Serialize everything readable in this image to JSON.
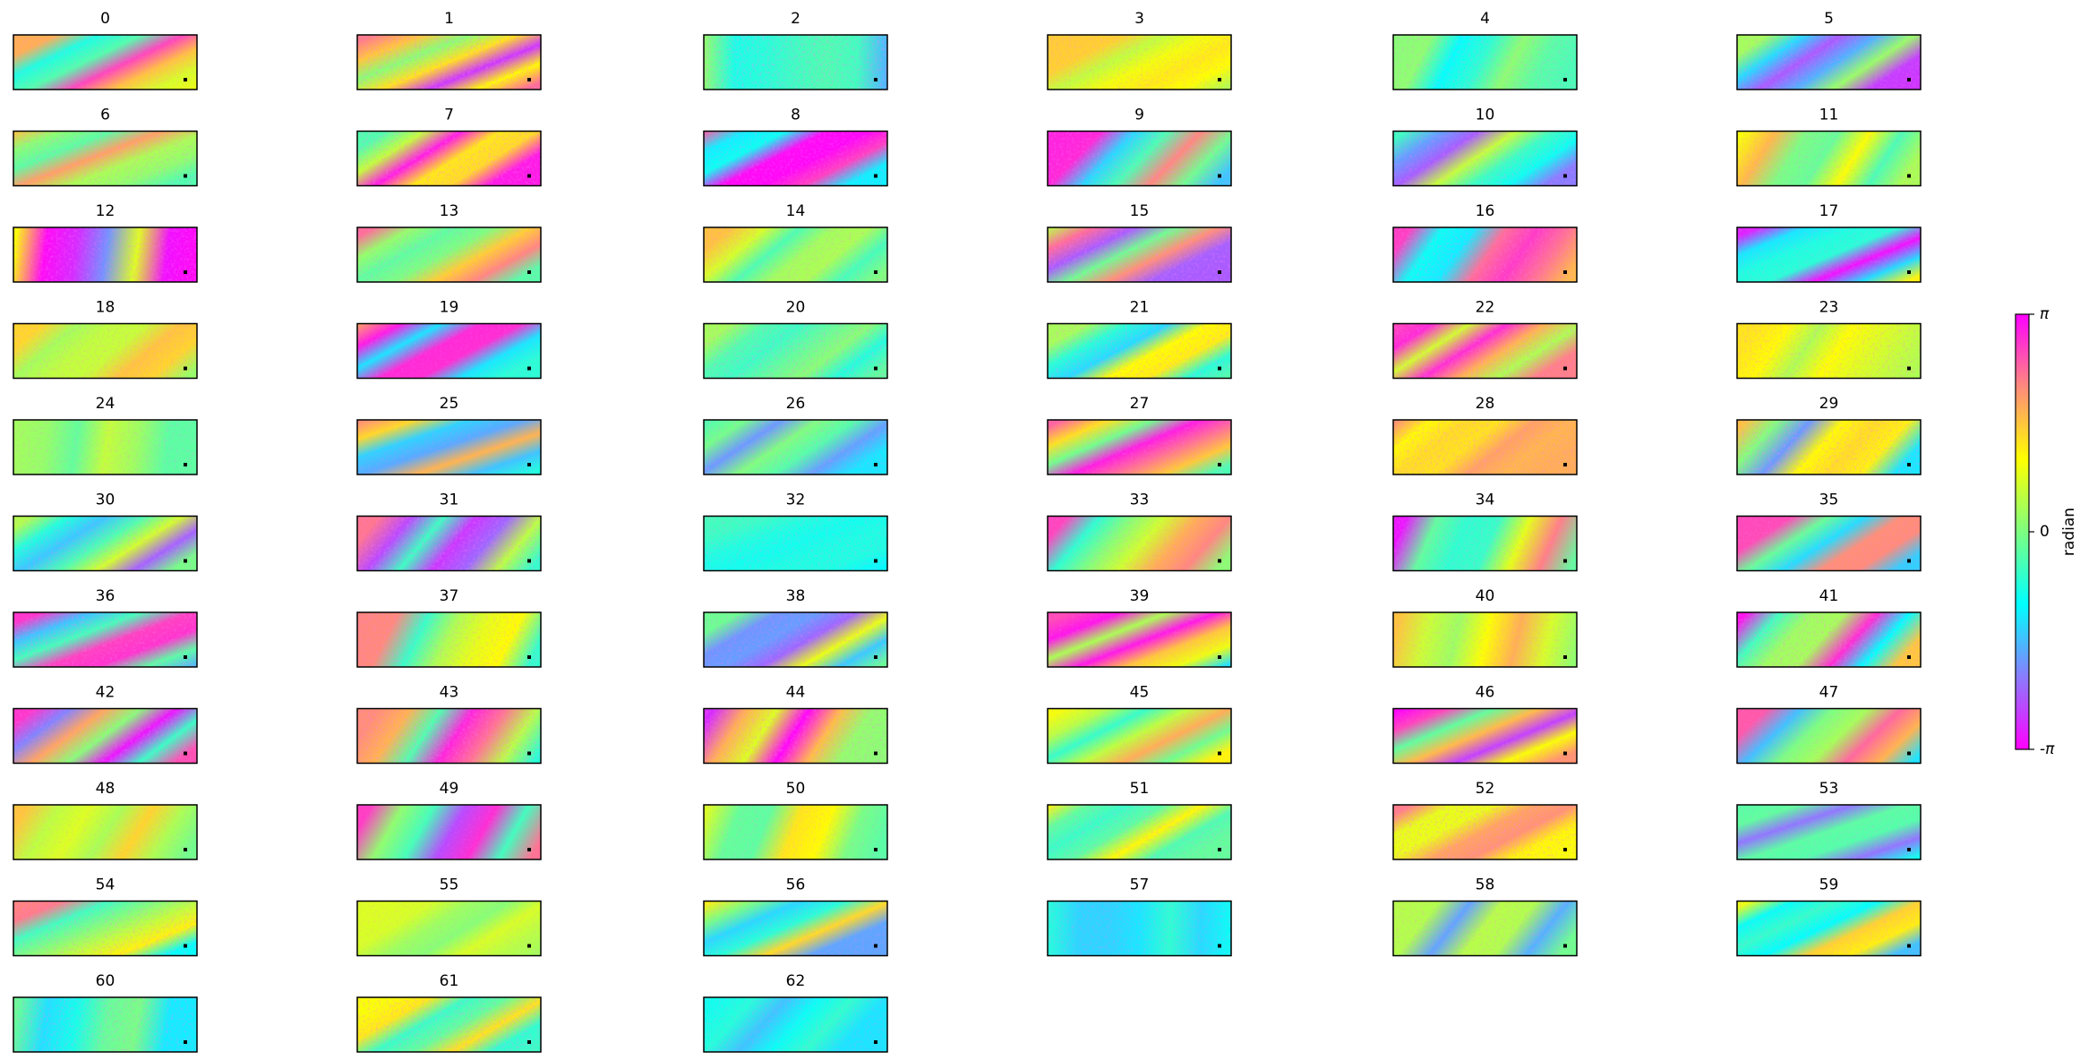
{
  "chart_data": {
    "type": "image-grid",
    "panels": [
      "0",
      "1",
      "2",
      "3",
      "4",
      "5",
      "6",
      "7",
      "8",
      "9",
      "10",
      "11",
      "12",
      "13",
      "14",
      "15",
      "16",
      "17",
      "18",
      "19",
      "20",
      "21",
      "22",
      "23",
      "24",
      "25",
      "26",
      "27",
      "28",
      "29",
      "30",
      "31",
      "32",
      "33",
      "34",
      "35",
      "36",
      "37",
      "38",
      "39",
      "40",
      "41",
      "42",
      "43",
      "44",
      "45",
      "46",
      "47",
      "48",
      "49",
      "50",
      "51",
      "52",
      "53",
      "54",
      "55",
      "56",
      "57",
      "58",
      "59",
      "60",
      "61",
      "62"
    ],
    "colorbar": {
      "label": "radian",
      "lim": [
        -3.141592653589793,
        3.141592653589793
      ],
      "ticks": [
        {
          "value": 3.141592653589793,
          "label": "π"
        },
        0,
        {
          "value": -3.141592653589793,
          "label": "-π"
        }
      ],
      "colors": [
        "#ff00ff",
        "#8a7cff",
        "#00ffff",
        "#7dff80",
        "#ffff00",
        "#ff8a7c",
        "#ff00ff"
      ]
    }
  }
}
